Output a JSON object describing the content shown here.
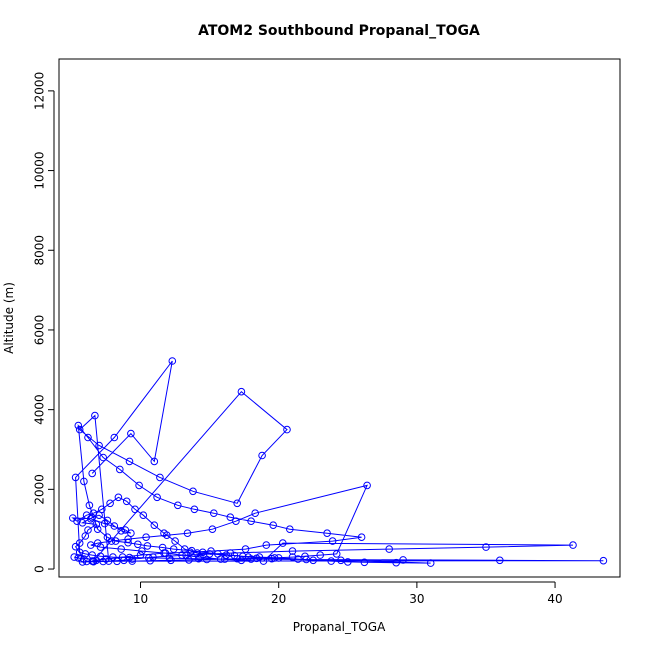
{
  "chart_data": {
    "type": "line",
    "title": "ATOM2 Southbound Propanal_TOGA",
    "xlabel": "Propanal_TOGA",
    "ylabel": "Altitude (m)",
    "xlim": [
      4.1,
      44.7
    ],
    "ylim": [
      -200,
      12800
    ],
    "xticks": [
      10,
      20,
      30,
      40
    ],
    "yticks": [
      0,
      2000,
      4000,
      6000,
      8000,
      10000,
      12000
    ],
    "grid": false,
    "legend": "none",
    "series_color": "#0000FF",
    "markers": "open-circle",
    "x": [
      5.2,
      5.5,
      5.7,
      5.9,
      5.3,
      5.6,
      6.0,
      6.2,
      6.8,
      5.8,
      6.5,
      7.0,
      7.6,
      8.1,
      8.6,
      9.3,
      8.9,
      7.4,
      6.4,
      5.1,
      5.4,
      6.1,
      6.6,
      7.2,
      7.8,
      8.4,
      9.0,
      9.6,
      10.2,
      11.0,
      11.7,
      12.5,
      13.2,
      14.1,
      15.0,
      16.2,
      17.4,
      18.6,
      20.0,
      21.4,
      22.5,
      23.8,
      25.0,
      26.2,
      28.5,
      31.0,
      24.5,
      19.5,
      17.8,
      16.8,
      15.6,
      14.5,
      13.7,
      12.4,
      11.6,
      10.5,
      9.8,
      9.1,
      8.2,
      7.6,
      6.9,
      6.3,
      5.9,
      5.5,
      6.2,
      7.3,
      8.5,
      9.9,
      11.2,
      12.7,
      13.9,
      15.3,
      16.5,
      18.0,
      19.6,
      20.8,
      23.5,
      26.0,
      23.9,
      19.1,
      17.6,
      15.1,
      13.6,
      11.7,
      10.0,
      8.7,
      7.5,
      6.8,
      6.5,
      6.1,
      5.8,
      6.6,
      7.3,
      8.3,
      9.4,
      10.7,
      12.2,
      13.5,
      14.8,
      16.1,
      17.0,
      18.4,
      19.7,
      21.0,
      21.9,
      23.0,
      24.2,
      26.4,
      18.3,
      16.9,
      15.2,
      13.4,
      11.9,
      10.4,
      9.1,
      7.9,
      6.9,
      6.4,
      7.1,
      8.6,
      10.1,
      11.8,
      13.0,
      14.3,
      15.8,
      17.3,
      18.9,
      20.3,
      41.3,
      35.0,
      28.0,
      21.0,
      16.5,
      13.3,
      10.9,
      9.4,
      8.8,
      7.7,
      6.7,
      5.6,
      7.0,
      9.2,
      11.4,
      13.8,
      17.0,
      18.8,
      20.6,
      17.3,
      6.6,
      43.5,
      36.0,
      29.0,
      22.0,
      18.0,
      14.2,
      12.1,
      10.6,
      9.2,
      8.0,
      7.1,
      6.5,
      6.0,
      5.6,
      5.3,
      8.1,
      12.3,
      11.0,
      9.3,
      6.5
    ],
    "y": [
      300,
      280,
      260,
      250,
      560,
      650,
      830,
      980,
      1120,
      1160,
      1290,
      1350,
      1220,
      1080,
      960,
      900,
      980,
      1140,
      1260,
      1280,
      1200,
      1350,
      1400,
      1500,
      1650,
      1800,
      1700,
      1500,
      1350,
      1100,
      900,
      700,
      500,
      400,
      380,
      350,
      320,
      300,
      280,
      250,
      220,
      200,
      180,
      170,
      160,
      150,
      220,
      260,
      300,
      340,
      380,
      420,
      460,
      500,
      540,
      580,
      620,
      660,
      700,
      800,
      1000,
      1600,
      2200,
      3600,
      3300,
      2800,
      2500,
      2100,
      1800,
      1600,
      1500,
      1400,
      1300,
      1200,
      1100,
      1000,
      900,
      800,
      700,
      600,
      500,
      450,
      420,
      400,
      350,
      300,
      250,
      220,
      200,
      190,
      180,
      185,
      190,
      195,
      200,
      210,
      220,
      230,
      240,
      250,
      260,
      270,
      280,
      300,
      320,
      350,
      380,
      2100,
      1400,
      1200,
      1000,
      900,
      850,
      800,
      750,
      700,
      650,
      600,
      550,
      500,
      450,
      400,
      350,
      300,
      250,
      220,
      200,
      650,
      600,
      550,
      500,
      450,
      400,
      350,
      300,
      250,
      220,
      200,
      3850,
      3500,
      3100,
      2700,
      2300,
      1950,
      1650,
      2850,
      3500,
      4450,
      200,
      210,
      220,
      230,
      240,
      250,
      260,
      270,
      280,
      290,
      300,
      320,
      350,
      380,
      420,
      2300,
      3300,
      5220,
      2700,
      3400,
      2400
    ]
  }
}
